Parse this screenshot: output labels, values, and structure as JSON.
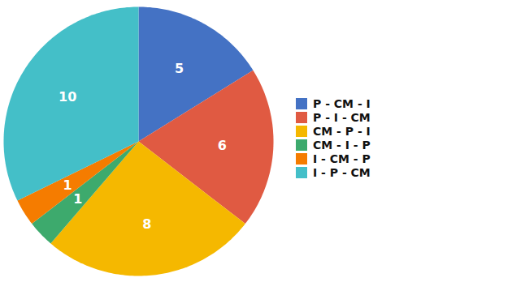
{
  "chart_data": {
    "type": "pie",
    "categories": [
      "P - CM - I",
      "P - I - CM",
      "CM - P - I",
      "CM - I - P",
      "I - CM - P",
      "I - P - CM"
    ],
    "values": [
      5,
      6,
      8,
      1,
      1,
      10
    ],
    "colors": [
      "#4472C4",
      "#E05A42",
      "#F5B800",
      "#3DAA6D",
      "#F57C00",
      "#44BFC8"
    ],
    "data_labels": true,
    "legend": "right"
  }
}
